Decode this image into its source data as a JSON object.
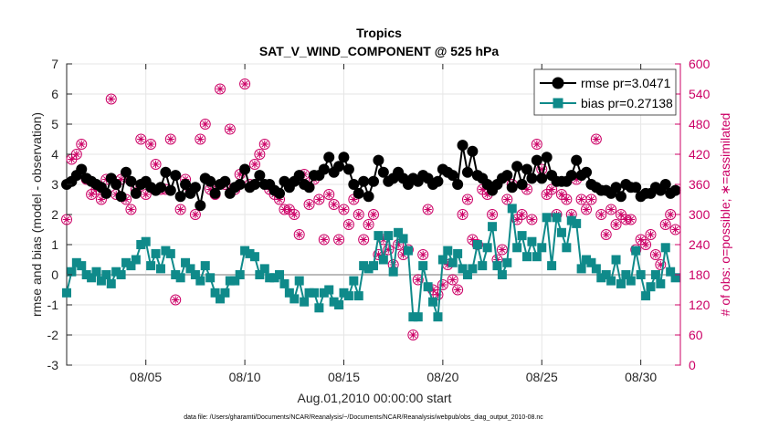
{
  "chart_data": {
    "type": "line",
    "title": "Tropics",
    "subtitle": "SAT_V_WIND_COMPONENT @ 525 hPa",
    "xlabel": "Aug.01,2010 00:00:00 start",
    "ylabel_left": "rmse and bias (model - observation)",
    "ylabel_right": "# of obs: o=possible; ∗=assimilated",
    "footnote": "data file: /Users/gharamti/Documents/NCAR/Reanalysis/~/Documents/NCAR/Reanalysis/webpub/obs_diag_output_2010-08.nc",
    "x_ticks": [
      5,
      10,
      15,
      20,
      25,
      30
    ],
    "x_tick_labels": [
      "08/05",
      "08/10",
      "08/15",
      "08/20",
      "08/25",
      "08/30"
    ],
    "xlim": [
      1,
      32
    ],
    "ylim_left": [
      -3,
      7
    ],
    "y_ticks_left": [
      -3,
      -2,
      -1,
      0,
      1,
      2,
      3,
      4,
      5,
      6,
      7
    ],
    "y_tick_labels_left": [
      "-3",
      "-2",
      "-1",
      "0",
      "1",
      "2",
      "3",
      "4",
      "5",
      "6",
      "7"
    ],
    "ylim_right": [
      0,
      600
    ],
    "y_ticks_right": [
      0,
      60,
      120,
      180,
      240,
      300,
      360,
      420,
      480,
      540,
      600
    ],
    "y_tick_labels_right": [
      "0",
      "60",
      "120",
      "180",
      "240",
      "300",
      "360",
      "420",
      "480",
      "540",
      "600"
    ],
    "legend": [
      {
        "name": "rmse",
        "label": "rmse pr=3.0471"
      },
      {
        "name": "bias",
        "label": "bias pr=0.27138"
      }
    ],
    "legend_position": "top-right",
    "zero_line": true,
    "colors": {
      "rmse": "#000000",
      "bias": "#0f8a8a",
      "obs": "#cc0066",
      "zero": "#bbbbbb"
    },
    "x": [
      1.0,
      1.25,
      1.5,
      1.75,
      2.0,
      2.25,
      2.5,
      2.75,
      3.0,
      3.25,
      3.5,
      3.75,
      4.0,
      4.25,
      4.5,
      4.75,
      5.0,
      5.25,
      5.5,
      5.75,
      6.0,
      6.25,
      6.5,
      6.75,
      7.0,
      7.25,
      7.5,
      7.75,
      8.0,
      8.25,
      8.5,
      8.75,
      9.0,
      9.25,
      9.5,
      9.75,
      10.0,
      10.25,
      10.5,
      10.75,
      11.0,
      11.25,
      11.5,
      11.75,
      12.0,
      12.25,
      12.5,
      12.75,
      13.0,
      13.25,
      13.5,
      13.75,
      14.0,
      14.25,
      14.5,
      14.75,
      15.0,
      15.25,
      15.5,
      15.75,
      16.0,
      16.25,
      16.5,
      16.75,
      17.0,
      17.25,
      17.5,
      17.75,
      18.0,
      18.25,
      18.5,
      18.75,
      19.0,
      19.25,
      19.5,
      19.75,
      20.0,
      20.25,
      20.5,
      20.75,
      21.0,
      21.25,
      21.5,
      21.75,
      22.0,
      22.25,
      22.5,
      22.75,
      23.0,
      23.25,
      23.5,
      23.75,
      24.0,
      24.25,
      24.5,
      24.75,
      25.0,
      25.25,
      25.5,
      25.75,
      26.0,
      26.25,
      26.5,
      26.75,
      27.0,
      27.25,
      27.5,
      27.75,
      28.0,
      28.25,
      28.5,
      28.75,
      29.0,
      29.25,
      29.5,
      29.75,
      30.0,
      30.25,
      30.5,
      30.75,
      31.0,
      31.25,
      31.5,
      31.75
    ],
    "series": [
      {
        "name": "rmse",
        "marker": "circle",
        "values": [
          3.0,
          3.1,
          3.3,
          3.5,
          3.2,
          3.1,
          3.0,
          2.9,
          2.7,
          3.2,
          3.0,
          2.6,
          3.4,
          3.1,
          2.7,
          3.0,
          3.1,
          2.9,
          2.8,
          2.9,
          3.4,
          2.8,
          3.3,
          2.6,
          3.0,
          2.7,
          2.9,
          2.3,
          3.2,
          3.1,
          2.7,
          3.0,
          3.1,
          2.7,
          2.9,
          3.0,
          3.5,
          2.9,
          3.0,
          3.3,
          3.0,
          3.0,
          2.8,
          2.7,
          3.1,
          2.9,
          3.1,
          3.3,
          3.0,
          2.9,
          3.3,
          3.3,
          3.5,
          3.9,
          3.4,
          3.6,
          3.9,
          3.5,
          3.0,
          2.7,
          3.1,
          2.6,
          3.1,
          3.8,
          3.4,
          3.1,
          3.2,
          3.4,
          3.2,
          3.0,
          3.2,
          3.1,
          3.3,
          3.2,
          3.0,
          3.1,
          3.5,
          3.4,
          3.3,
          3.0,
          4.3,
          3.4,
          4.1,
          3.3,
          3.2,
          3.0,
          2.8,
          3.0,
          3.2,
          3.3,
          2.9,
          3.6,
          3.0,
          3.5,
          3.2,
          3.8,
          3.2,
          3.9,
          3.3,
          3.1,
          3.1,
          3.1,
          3.3,
          3.8,
          3.3,
          3.4,
          3.0,
          2.9,
          2.8,
          2.8,
          2.7,
          2.9,
          2.6,
          3.0,
          2.9,
          2.9,
          2.6,
          2.7,
          2.7,
          2.9,
          2.8,
          3.0,
          2.7,
          2.8
        ]
      },
      {
        "name": "bias",
        "marker": "square",
        "values": [
          -0.6,
          0.1,
          0.4,
          0.3,
          0.0,
          -0.1,
          0.1,
          -0.2,
          0.0,
          -0.3,
          0.1,
          0.0,
          0.4,
          0.3,
          0.5,
          1.0,
          1.1,
          0.3,
          0.7,
          0.2,
          0.8,
          0.7,
          0.0,
          -0.1,
          0.4,
          0.2,
          0.0,
          -0.2,
          0.3,
          -0.1,
          -0.6,
          -0.8,
          -0.6,
          -0.2,
          -0.2,
          0.0,
          0.8,
          0.7,
          0.6,
          0.0,
          0.2,
          -0.1,
          -0.1,
          0.0,
          -0.3,
          -0.6,
          -0.8,
          -0.2,
          -0.9,
          -0.6,
          -0.6,
          -1.1,
          -0.6,
          -0.5,
          -0.9,
          -1.0,
          -0.6,
          -0.7,
          -0.2,
          -0.7,
          0.3,
          0.2,
          0.3,
          1.3,
          0.5,
          1.3,
          0.1,
          1.4,
          1.2,
          0.8,
          -1.4,
          -1.4,
          0.3,
          -0.4,
          -0.9,
          -1.4,
          0.5,
          0.8,
          0.4,
          0.7,
          0.2,
          0.0,
          0.2,
          1.0,
          0.3,
          0.9,
          1.6,
          0.3,
          0.0,
          0.4,
          2.2,
          0.9,
          1.3,
          0.6,
          1.1,
          0.6,
          0.9,
          1.9,
          0.3,
          1.9,
          1.4,
          0.9,
          1.8,
          1.7,
          0.2,
          0.5,
          0.4,
          0.2,
          -0.1,
          0.0,
          -0.2,
          0.5,
          -0.3,
          0.0,
          -0.2,
          0.8,
          0.0,
          -0.7,
          -0.4,
          0.0,
          -0.3,
          0.9,
          0.1,
          -0.1
        ]
      },
      {
        "name": "obs_count",
        "axis": "right",
        "marker": "circle-asterisk",
        "values": [
          290,
          410,
          420,
          440,
          370,
          340,
          350,
          330,
          370,
          530,
          340,
          370,
          330,
          310,
          350,
          450,
          340,
          440,
          400,
          350,
          350,
          450,
          130,
          310,
          370,
          350,
          300,
          450,
          480,
          350,
          340,
          550,
          360,
          470,
          350,
          380,
          560,
          360,
          400,
          420,
          440,
          350,
          340,
          330,
          310,
          310,
          300,
          260,
          380,
          320,
          370,
          330,
          250,
          340,
          320,
          250,
          310,
          280,
          330,
          300,
          250,
          280,
          300,
          220,
          250,
          230,
          200,
          240,
          220,
          230,
          60,
          170,
          220,
          310,
          150,
          140,
          160,
          200,
          170,
          150,
          300,
          330,
          250,
          240,
          350,
          340,
          300,
          210,
          230,
          330,
          360,
          290,
          300,
          350,
          290,
          440,
          390,
          340,
          350,
          300,
          340,
          330,
          300,
          370,
          330,
          310,
          330,
          450,
          300,
          260,
          310,
          280,
          300,
          290,
          290,
          230,
          250,
          240,
          260,
          220,
          200,
          280,
          300,
          270
        ]
      }
    ]
  }
}
